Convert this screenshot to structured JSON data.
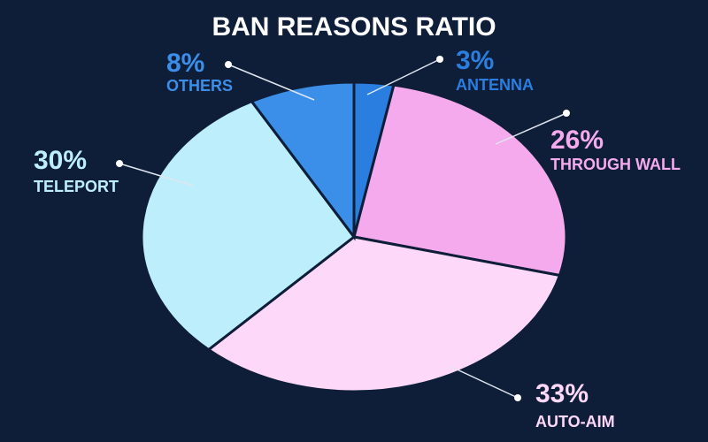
{
  "chart_data": {
    "type": "pie",
    "title": "BAN REASONS RATIO",
    "categories": [
      "ANTENNA",
      "THROUGH WALL",
      "AUTO-AIM",
      "TELEPORT",
      "OTHERS"
    ],
    "values": [
      3,
      26,
      33,
      30,
      8
    ],
    "value_labels": [
      "3%",
      "26%",
      "33%",
      "30%",
      "8%"
    ],
    "colors": [
      "#2a7ee0",
      "#f6aaee",
      "#fdd8f8",
      "#bdeefc",
      "#3b8fe8"
    ]
  }
}
